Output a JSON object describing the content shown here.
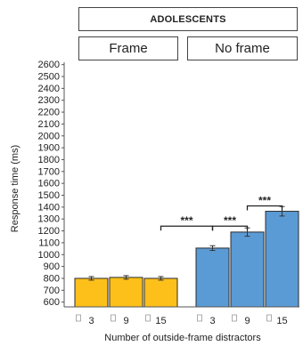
{
  "header": {
    "title": "ADOLESCENTS"
  },
  "panels": [
    "Frame",
    "No frame"
  ],
  "colors": {
    "frame": "#FDC01A",
    "no_frame": "#5B9BD5",
    "bar_edge": "#2b2b2b"
  },
  "chart_data": {
    "type": "bar",
    "xlabel": "Number of outside-frame distractors",
    "ylabel": "Response time (ms)",
    "ylim": [
      560,
      2620
    ],
    "yticks": [
      600,
      700,
      800,
      900,
      1000,
      1100,
      1200,
      1300,
      1400,
      1500,
      1600,
      1700,
      1800,
      1900,
      2000,
      2100,
      2200,
      2300,
      2400,
      2500,
      2600
    ],
    "categories": [
      "3",
      "9",
      "15"
    ],
    "groups": [
      {
        "name": "Frame",
        "color": "#FDC01A",
        "values": [
          800,
          808,
          800
        ],
        "errors": [
          15,
          15,
          15
        ]
      },
      {
        "name": "No frame",
        "color": "#5B9BD5",
        "values": [
          1055,
          1190,
          1365
        ],
        "errors": [
          20,
          35,
          40
        ]
      }
    ],
    "significance": [
      {
        "from": [
          0,
          2
        ],
        "to": [
          1,
          0
        ],
        "label": "***"
      },
      {
        "from": [
          1,
          0
        ],
        "to": [
          1,
          1
        ],
        "label": "***"
      },
      {
        "from": [
          1,
          1
        ],
        "to": [
          1,
          2
        ],
        "label": "***"
      }
    ]
  }
}
